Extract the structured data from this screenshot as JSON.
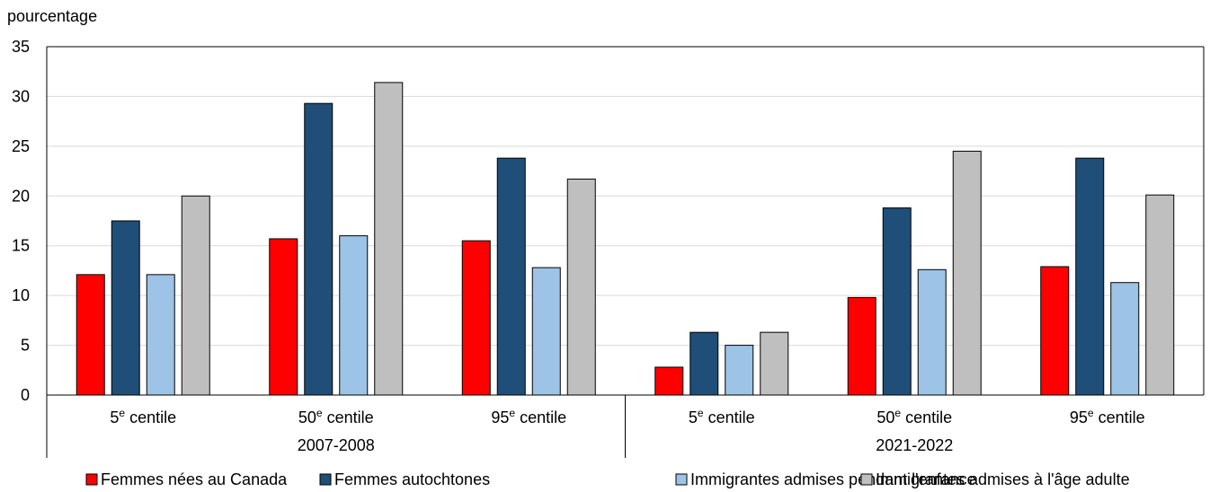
{
  "chart_data": {
    "type": "bar",
    "ylabel": "pourcentage",
    "ylim": [
      0,
      35
    ],
    "yticks": [
      0,
      5,
      10,
      15,
      20,
      25,
      30,
      35
    ],
    "grid": true,
    "legend_position": "bottom",
    "groups": [
      "2007-2008",
      "2021-2022"
    ],
    "subcategories": [
      {
        "base": "5",
        "sup": "e",
        "rest": " centile"
      },
      {
        "base": "50",
        "sup": "e",
        "rest": " centile"
      },
      {
        "base": "95",
        "sup": "e",
        "rest": " centile"
      }
    ],
    "categories": [
      "5e centile (2007-2008)",
      "50e centile (2007-2008)",
      "95e centile (2007-2008)",
      "5e centile (2021-2022)",
      "50e centile (2021-2022)",
      "95e centile (2021-2022)"
    ],
    "series": [
      {
        "name": "Femmes nées au Canada",
        "color": "#ff0000",
        "values": [
          12.1,
          15.7,
          15.5,
          2.8,
          9.8,
          12.9
        ]
      },
      {
        "name": "Femmes autochtones",
        "color": "#1f4e79",
        "values": [
          17.5,
          29.3,
          23.8,
          6.3,
          18.8,
          23.8
        ]
      },
      {
        "name": "Immigrantes admises pendant l'enfance",
        "color": "#9dc3e6",
        "values": [
          12.1,
          16.0,
          12.8,
          5.0,
          12.6,
          11.3
        ]
      },
      {
        "name": "Immigrantes admises à l'âge adulte",
        "color": "#bfbfbf",
        "values": [
          20.0,
          31.4,
          21.7,
          6.3,
          24.5,
          20.1
        ]
      }
    ]
  }
}
